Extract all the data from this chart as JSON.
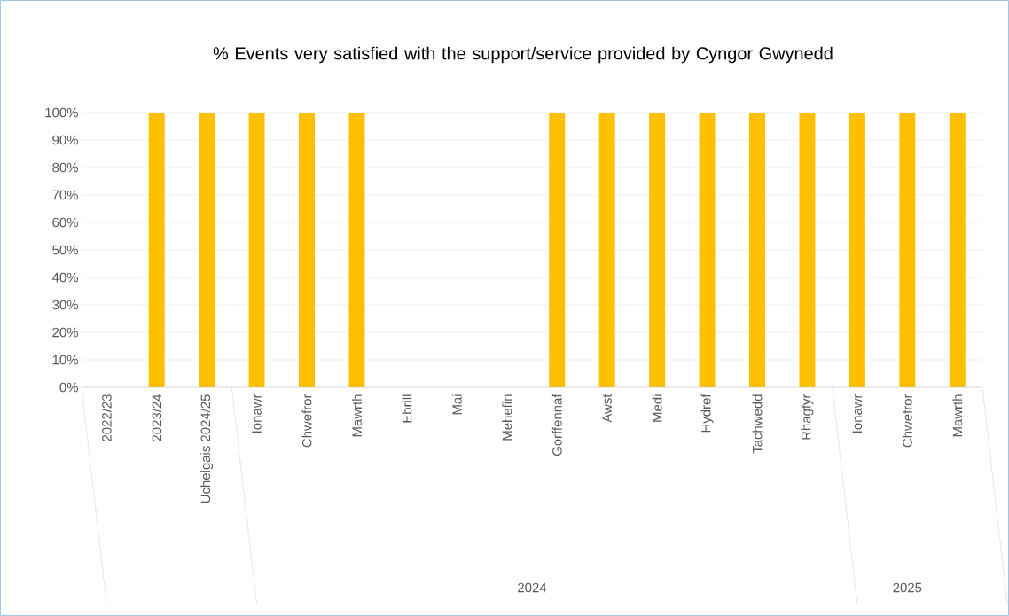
{
  "chart_data": {
    "type": "bar",
    "title": "% Events very satisfied with the support/service provided by Cyngor Gwynedd",
    "categories": [
      "2022/23",
      "2023/24",
      "Uchelgais 2024/25",
      "Ionawr",
      "Chwefror",
      "Mawrth",
      "Ebrill",
      "Mai",
      "Mehefin",
      "Gorffennaf",
      "Awst",
      "Medi",
      "Hydref",
      "Tachwedd",
      "Rhagfyr",
      "Ionawr",
      "Chwefror",
      "Mawrth"
    ],
    "values": [
      null,
      100,
      100,
      100,
      100,
      100,
      null,
      null,
      null,
      100,
      100,
      100,
      100,
      100,
      100,
      100,
      100,
      100
    ],
    "color": "#ffc000",
    "ylim": [
      0,
      100
    ],
    "yticks": [
      {
        "value": 0,
        "label": "0%"
      },
      {
        "value": 10,
        "label": "10%"
      },
      {
        "value": 20,
        "label": "20%"
      },
      {
        "value": 30,
        "label": "30%"
      },
      {
        "value": 40,
        "label": "40%"
      },
      {
        "value": 50,
        "label": "50%"
      },
      {
        "value": 60,
        "label": "60%"
      },
      {
        "value": 70,
        "label": "70%"
      },
      {
        "value": 80,
        "label": "80%"
      },
      {
        "value": 90,
        "label": "90%"
      },
      {
        "value": 100,
        "label": "100%"
      }
    ],
    "grid": "y",
    "annotations": [
      "2024",
      "2025"
    ]
  }
}
